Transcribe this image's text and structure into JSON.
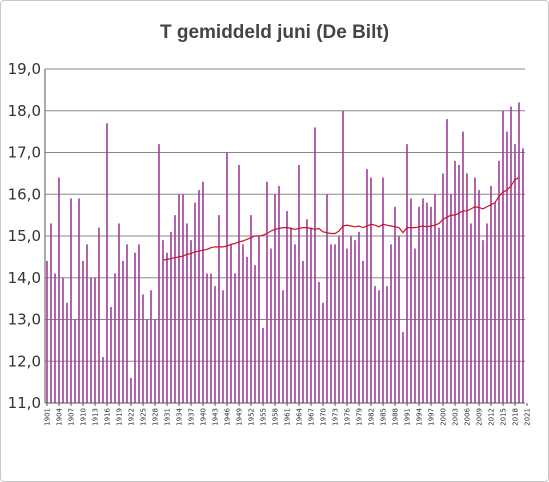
{
  "chart_data": {
    "type": "bar",
    "title": "T gemiddeld juni (De Bilt)",
    "xlabel": "",
    "ylabel": "",
    "ylim": [
      11,
      19
    ],
    "yticks": [
      "11,0",
      "12,0",
      "13,0",
      "14,0",
      "15,0",
      "16,0",
      "17,0",
      "18,0",
      "19,0"
    ],
    "grid": true,
    "colors": {
      "bar": "#a3479a",
      "line": "#cc1122",
      "grid": "#888888"
    },
    "x_start": 1901,
    "x_tick_labels": [
      "1901",
      "1904",
      "1907",
      "1910",
      "1913",
      "1916",
      "1919",
      "1922",
      "1925",
      "1928",
      "1931",
      "1934",
      "1937",
      "1940",
      "1943",
      "1946",
      "1949",
      "1952",
      "1955",
      "1958",
      "1961",
      "1964",
      "1967",
      "1970",
      "1973",
      "1976",
      "1979",
      "1982",
      "1985",
      "1988",
      "1991",
      "1994",
      "1997",
      "2000",
      "2003",
      "2006",
      "2009",
      "2012",
      "2015",
      "2018",
      "2021"
    ],
    "series": [
      {
        "type": "bar",
        "values": [
          14.4,
          15.3,
          14.1,
          16.4,
          14.0,
          13.4,
          15.9,
          13.0,
          15.9,
          14.4,
          14.8,
          14.0,
          14.0,
          15.2,
          12.1,
          17.7,
          13.3,
          14.1,
          15.3,
          14.4,
          14.8,
          11.6,
          14.6,
          14.8,
          13.6,
          13.0,
          13.7,
          13.0,
          17.2,
          14.9,
          14.6,
          15.1,
          15.5,
          16.0,
          16.0,
          15.3,
          14.9,
          15.8,
          16.1,
          16.3,
          14.1,
          14.1,
          13.8,
          15.5,
          13.7,
          17.0,
          14.8,
          14.1,
          16.7,
          14.8,
          14.5,
          15.5,
          14.3,
          15.0,
          12.8,
          16.3,
          14.7,
          16.0,
          16.2,
          13.7,
          15.6,
          15.2,
          14.8,
          16.7,
          14.4,
          15.4,
          15.2,
          17.6,
          13.9,
          13.4,
          16.0,
          14.8,
          14.8,
          15.0,
          18.0,
          14.7,
          15.0,
          14.9,
          15.1,
          14.4,
          16.6,
          16.4,
          13.8,
          13.7,
          16.4,
          13.8,
          14.8,
          15.7,
          15.0,
          12.7,
          17.2,
          15.9,
          14.7,
          15.7,
          15.9,
          15.8,
          15.7,
          16.0,
          15.2,
          16.5,
          17.8,
          16.0,
          16.8,
          16.7,
          17.5,
          16.5,
          15.3,
          16.4,
          16.1,
          14.9,
          15.3,
          16.2,
          15.8,
          16.8,
          18.0,
          17.5,
          18.1,
          17.2,
          18.2,
          17.1
        ]
      },
      {
        "type": "line",
        "x_start": 1930,
        "values": [
          14.42,
          14.44,
          14.46,
          14.48,
          14.5,
          14.52,
          14.56,
          14.58,
          14.62,
          14.64,
          14.66,
          14.68,
          14.72,
          14.74,
          14.74,
          14.74,
          14.76,
          14.8,
          14.82,
          14.86,
          14.88,
          14.92,
          14.96,
          15.0,
          15.0,
          15.02,
          15.06,
          15.12,
          15.16,
          15.18,
          15.2,
          15.2,
          15.18,
          15.16,
          15.18,
          15.2,
          15.2,
          15.18,
          15.16,
          15.18,
          15.1,
          15.08,
          15.06,
          15.06,
          15.12,
          15.24,
          15.26,
          15.24,
          15.22,
          15.24,
          15.2,
          15.24,
          15.28,
          15.26,
          15.22,
          15.28,
          15.26,
          15.24,
          15.22,
          15.2,
          15.08,
          15.2,
          15.2,
          15.2,
          15.22,
          15.24,
          15.22,
          15.24,
          15.26,
          15.3,
          15.4,
          15.45,
          15.5,
          15.5,
          15.55,
          15.6,
          15.6,
          15.65,
          15.7,
          15.68,
          15.65,
          15.7,
          15.75,
          15.8,
          15.95,
          16.05,
          16.1,
          16.2,
          16.35,
          16.4
        ]
      }
    ]
  }
}
